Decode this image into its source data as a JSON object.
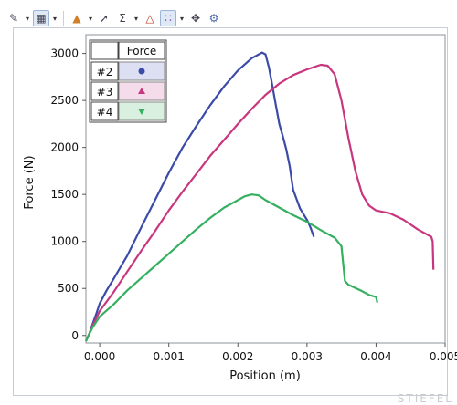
{
  "toolbar": {
    "icons": [
      "edit-icon",
      "chart-options-icon",
      "color-palette-icon",
      "pointer-tool-icon",
      "sigma-icon",
      "peak-icon",
      "scatter-icon",
      "crosshair-icon",
      "gear-icon"
    ]
  },
  "watermark": "STIEFEL",
  "chart_data": {
    "type": "line",
    "title": "",
    "xlabel": "Position (m)",
    "ylabel": "Force (N)",
    "xlim": [
      -0.0002,
      0.005
    ],
    "ylim": [
      -80,
      3200
    ],
    "x_ticks": [
      0.0,
      0.001,
      0.002,
      0.003,
      0.004,
      0.005
    ],
    "x_tick_labels": [
      "0.000",
      "0.001",
      "0.002",
      "0.003",
      "0.004",
      "0.005"
    ],
    "y_ticks": [
      0,
      500,
      1000,
      1500,
      2000,
      2500,
      3000
    ],
    "y_tick_labels": [
      "0",
      "500",
      "1000",
      "1500",
      "2000",
      "2500",
      "3000"
    ],
    "grid": false,
    "legend": {
      "placement": "top-left",
      "header": "Force",
      "entries": [
        {
          "label": "#2",
          "marker": "circle",
          "color": "#3a4ba8",
          "bg": "#dde0f2"
        },
        {
          "label": "#3",
          "marker": "triangle-up",
          "color": "#c8367e",
          "bg": "#f4dcea"
        },
        {
          "label": "#4",
          "marker": "triangle-down",
          "color": "#35b060",
          "bg": "#d9f0e0"
        }
      ]
    },
    "series": [
      {
        "name": "#2",
        "color": "#3a4ba8",
        "points": [
          [
            -0.0002,
            -60
          ],
          [
            -0.00015,
            20
          ],
          [
            -0.0001,
            130
          ],
          [
            -5e-05,
            230
          ],
          [
            0.0,
            340
          ],
          [
            0.0001,
            480
          ],
          [
            0.0002,
            600
          ],
          [
            0.0004,
            850
          ],
          [
            0.0006,
            1150
          ],
          [
            0.0008,
            1440
          ],
          [
            0.001,
            1730
          ],
          [
            0.0012,
            2000
          ],
          [
            0.0014,
            2230
          ],
          [
            0.0016,
            2450
          ],
          [
            0.0018,
            2650
          ],
          [
            0.002,
            2820
          ],
          [
            0.0022,
            2950
          ],
          [
            0.00235,
            3010
          ],
          [
            0.0024,
            2990
          ],
          [
            0.00245,
            2850
          ],
          [
            0.0025,
            2650
          ],
          [
            0.00255,
            2450
          ],
          [
            0.0026,
            2250
          ],
          [
            0.00265,
            2120
          ],
          [
            0.0027,
            1980
          ],
          [
            0.00275,
            1800
          ],
          [
            0.0028,
            1550
          ],
          [
            0.0029,
            1350
          ],
          [
            0.003,
            1230
          ],
          [
            0.00302,
            1200
          ],
          [
            0.00305,
            1150
          ],
          [
            0.0031,
            1050
          ]
        ]
      },
      {
        "name": "#3",
        "color": "#c8367e",
        "points": [
          [
            -0.0002,
            -60
          ],
          [
            -0.00015,
            20
          ],
          [
            -0.0001,
            110
          ],
          [
            0.0,
            260
          ],
          [
            0.0002,
            460
          ],
          [
            0.0004,
            680
          ],
          [
            0.0006,
            900
          ],
          [
            0.0008,
            1110
          ],
          [
            0.001,
            1330
          ],
          [
            0.0012,
            1530
          ],
          [
            0.0014,
            1720
          ],
          [
            0.0016,
            1910
          ],
          [
            0.0018,
            2080
          ],
          [
            0.002,
            2250
          ],
          [
            0.0022,
            2410
          ],
          [
            0.0024,
            2560
          ],
          [
            0.0026,
            2680
          ],
          [
            0.0028,
            2770
          ],
          [
            0.003,
            2830
          ],
          [
            0.0032,
            2880
          ],
          [
            0.0033,
            2870
          ],
          [
            0.0034,
            2780
          ],
          [
            0.0035,
            2500
          ],
          [
            0.0036,
            2100
          ],
          [
            0.0037,
            1750
          ],
          [
            0.0038,
            1500
          ],
          [
            0.0039,
            1380
          ],
          [
            0.004,
            1330
          ],
          [
            0.0042,
            1300
          ],
          [
            0.0044,
            1230
          ],
          [
            0.0046,
            1130
          ],
          [
            0.0048,
            1050
          ],
          [
            0.00482,
            1000
          ],
          [
            0.00483,
            700
          ]
        ]
      },
      {
        "name": "#4",
        "color": "#35b060",
        "points": [
          [
            -0.0002,
            -60
          ],
          [
            -0.00015,
            20
          ],
          [
            -0.0001,
            90
          ],
          [
            0.0,
            200
          ],
          [
            0.0002,
            330
          ],
          [
            0.0004,
            480
          ],
          [
            0.0006,
            610
          ],
          [
            0.0008,
            740
          ],
          [
            0.001,
            870
          ],
          [
            0.0012,
            1000
          ],
          [
            0.0014,
            1130
          ],
          [
            0.0016,
            1250
          ],
          [
            0.0018,
            1360
          ],
          [
            0.002,
            1440
          ],
          [
            0.0021,
            1480
          ],
          [
            0.0022,
            1500
          ],
          [
            0.0023,
            1490
          ],
          [
            0.0024,
            1440
          ],
          [
            0.0025,
            1400
          ],
          [
            0.0026,
            1360
          ],
          [
            0.0028,
            1280
          ],
          [
            0.003,
            1210
          ],
          [
            0.0032,
            1120
          ],
          [
            0.0034,
            1040
          ],
          [
            0.0035,
            950
          ],
          [
            0.00352,
            800
          ],
          [
            0.00355,
            580
          ],
          [
            0.0036,
            540
          ],
          [
            0.0038,
            470
          ],
          [
            0.0039,
            430
          ],
          [
            0.004,
            410
          ],
          [
            0.00402,
            350
          ]
        ]
      }
    ]
  }
}
